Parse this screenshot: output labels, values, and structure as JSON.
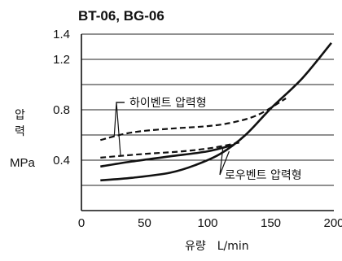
{
  "chart_data": {
    "type": "line",
    "title": "BT-06, BG-06",
    "xlabel": "유량　L/min",
    "ylabel": [
      "압",
      "력"
    ],
    "yunit": "MPa",
    "xlim": [
      0,
      200
    ],
    "ylim": [
      0,
      1.4
    ],
    "xticks": [
      0,
      50,
      100,
      150,
      200
    ],
    "ytick_labels": [
      {
        "value": 0.4,
        "text": "0.4"
      },
      {
        "value": 0.8,
        "text": "0.8"
      },
      {
        "value": 1.2,
        "text": "1.2"
      },
      {
        "value": 1.4,
        "text": "1.4"
      }
    ],
    "gridlines_y": [
      0.2,
      0.4,
      0.6,
      0.8,
      1.0,
      1.2,
      1.4
    ],
    "grid": true,
    "annotations": [
      {
        "key": "high_vent",
        "text": "하이벤트 압력형"
      },
      {
        "key": "low_vent",
        "text": "로우벤트 압력형"
      }
    ],
    "series": [
      {
        "key": "high_upper",
        "style": "dashed",
        "group": "high_vent",
        "x": [
          15,
          40,
          70,
          100,
          120,
          140,
          162
        ],
        "y": [
          0.56,
          0.62,
          0.65,
          0.67,
          0.7,
          0.76,
          0.89
        ]
      },
      {
        "key": "high_lower",
        "style": "dashed",
        "group": "high_vent",
        "x": [
          15,
          50,
          80,
          105,
          125
        ],
        "y": [
          0.42,
          0.45,
          0.47,
          0.5,
          0.54
        ]
      },
      {
        "key": "low_upper",
        "style": "solid",
        "group": "low_vent",
        "x": [
          15,
          40,
          70,
          100,
          120
        ],
        "y": [
          0.35,
          0.39,
          0.43,
          0.47,
          0.52
        ]
      },
      {
        "key": "low_lower",
        "style": "solid",
        "group": "low_vent",
        "x": [
          15,
          40,
          70,
          90,
          110,
          130,
          150,
          175,
          198
        ],
        "y": [
          0.24,
          0.26,
          0.3,
          0.36,
          0.45,
          0.6,
          0.81,
          1.05,
          1.33
        ]
      }
    ]
  }
}
